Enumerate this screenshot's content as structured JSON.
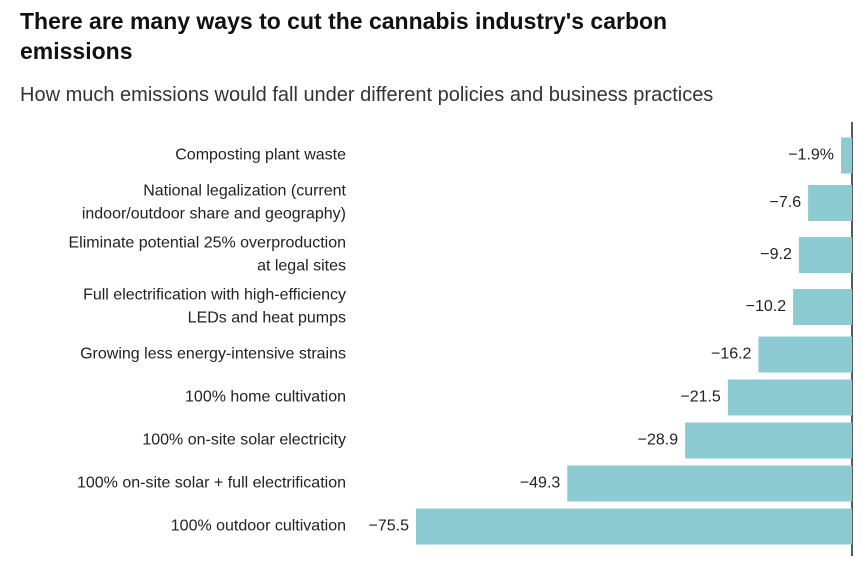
{
  "chart_data": {
    "type": "barh",
    "title": "There are many ways to cut the cannabis industry's carbon emissions",
    "subtitle": "How much emissions would fall under different policies and business practices",
    "categories": [
      [
        "Composting plant waste"
      ],
      [
        "National legalization (current",
        "indoor/outdoor share and geography)"
      ],
      [
        "Eliminate potential 25% overproduction",
        "at legal sites"
      ],
      [
        "Full electrification with high-efficiency",
        "LEDs and heat pumps"
      ],
      [
        "Growing less energy-intensive strains"
      ],
      [
        "100% home cultivation"
      ],
      [
        "100% on-site solar electricity"
      ],
      [
        "100% on-site solar + full electrification"
      ],
      [
        "100% outdoor cultivation"
      ]
    ],
    "values": [
      -1.9,
      -7.6,
      -9.2,
      -10.2,
      -16.2,
      -21.5,
      -28.9,
      -49.3,
      -75.5
    ],
    "value_labels": [
      "−1.9%",
      "−7.6",
      "−9.2",
      "−10.2",
      "−16.2",
      "−21.5",
      "−28.9",
      "−49.3",
      "−75.5"
    ],
    "color": "#8ccbd1"
  }
}
